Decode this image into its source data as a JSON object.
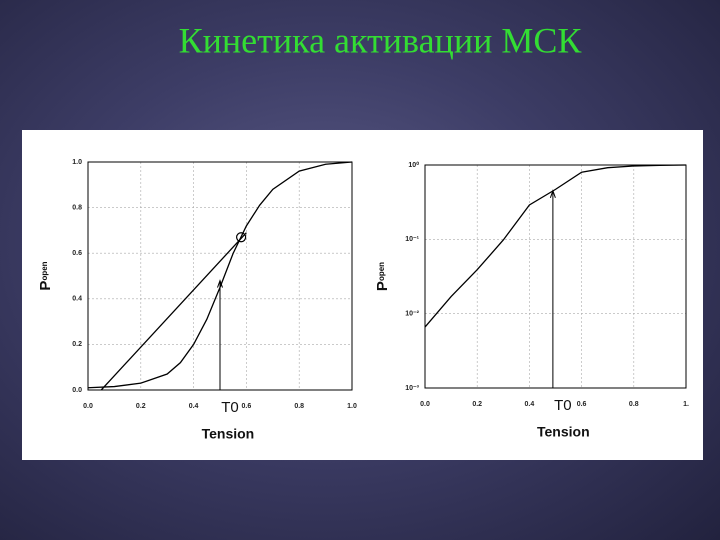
{
  "title": "Кинетика активации МСК",
  "chart_data": [
    {
      "type": "line",
      "x_label": "Tension",
      "y_label": "P",
      "y_label_sub": "open",
      "log_y": false,
      "grid": true,
      "xlim": [
        0,
        1
      ],
      "ylim": [
        0,
        1
      ],
      "xticks": [
        {
          "value": 0,
          "label": "0.0"
        },
        0.2,
        0.4,
        0.6,
        0.8,
        {
          "value": 1,
          "label": "1.0"
        }
      ],
      "yticks": [
        {
          "value": 0,
          "label": "0.0"
        },
        0.2,
        0.4,
        0.6,
        0.8,
        {
          "value": 1,
          "label": "1.0"
        }
      ],
      "series": [
        {
          "color": "#000000",
          "x": [
            0,
            0.1,
            0.2,
            0.3,
            0.35,
            0.4,
            0.45,
            0.5,
            0.55,
            0.6,
            0.65,
            0.7,
            0.8,
            0.9,
            1
          ],
          "values": [
            0.01,
            0.015,
            0.03,
            0.07,
            0.12,
            0.2,
            0.31,
            0.45,
            0.6,
            0.72,
            0.81,
            0.88,
            0.96,
            0.99,
            1
          ]
        },
        {
          "color": "#000000",
          "x": [
            0.05,
            0.6
          ],
          "values": [
            0,
            0.69
          ]
        }
      ],
      "marker": {
        "x": 0.58,
        "y": 0.67
      },
      "annotations": [
        {
          "text": "T0",
          "x": 0.5,
          "y": 0.48
        }
      ]
    },
    {
      "type": "line",
      "x_label": "Tension",
      "y_label": "P",
      "y_label_sub": "open",
      "log_y": true,
      "grid": true,
      "xlim": [
        0,
        1
      ],
      "ylim": [
        0.001,
        1
      ],
      "xticks": [
        {
          "value": 0,
          "label": "0.0"
        },
        0.2,
        0.4,
        0.6,
        0.8,
        {
          "value": 1,
          "label": "1."
        }
      ],
      "yticks": [
        {
          "value": 0.001,
          "label": "10⁻³"
        },
        {
          "value": 0.01,
          "label": "10⁻²"
        },
        {
          "value": 0.1,
          "label": "10⁻¹"
        },
        {
          "value": 1,
          "label": "10⁰"
        }
      ],
      "series": [
        {
          "color": "#000000",
          "x": [
            0,
            0.1,
            0.2,
            0.3,
            0.4,
            0.5,
            0.6,
            0.7,
            0.8,
            0.9,
            1
          ],
          "values": [
            0.0066,
            0.017,
            0.039,
            0.098,
            0.29,
            0.47,
            0.8,
            0.92,
            0.97,
            0.99,
            1
          ]
        }
      ],
      "annotations": [
        {
          "text": "T0",
          "x": 0.49,
          "y": 0.45
        }
      ]
    }
  ]
}
